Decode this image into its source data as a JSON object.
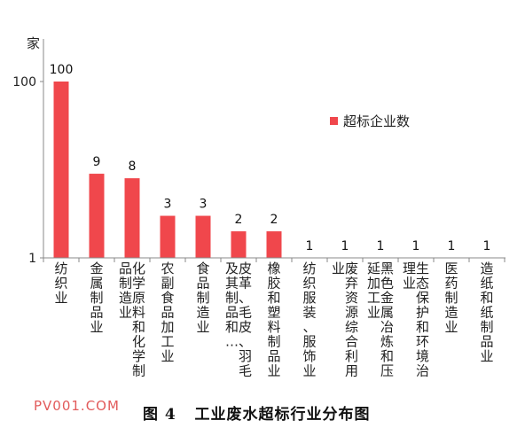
{
  "chart_data": {
    "type": "bar",
    "ylabel": "家",
    "yscale": "log",
    "ylim": [
      1,
      100
    ],
    "yticks": [
      "1",
      "100"
    ],
    "grid": false,
    "legend_position": "right",
    "categories": [
      "纺织业",
      "金属制品业",
      "化学原料和化学制品制造业",
      "农副食品加工业",
      "食品制造业",
      "皮革、毛皮、羽毛及其制品和…",
      "橡胶和塑料制品业",
      "纺织服装、服饰业",
      "废弃资源综合利用业",
      "黑色金属冶炼和压延加工业",
      "生态保护和环境治理业",
      "医药制造业",
      "造纸和纸制品业"
    ],
    "series": [
      {
        "name": "超标企业数",
        "values": [
          100,
          9,
          8,
          3,
          3,
          2,
          2,
          1,
          1,
          1,
          1,
          1,
          1
        ]
      }
    ],
    "bar_color": "#f0474c"
  },
  "watermark": "PV001.COM",
  "caption": "图 4   工业废水超标行业分布图"
}
